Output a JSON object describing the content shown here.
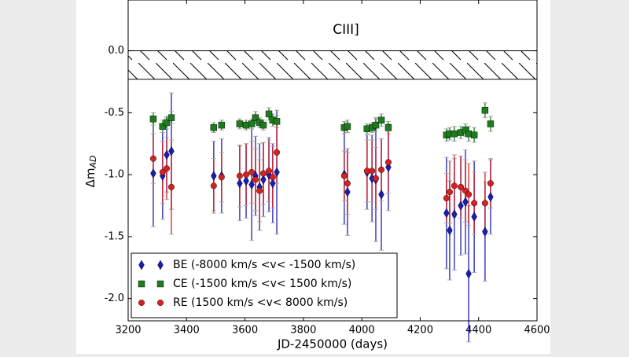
{
  "chart_data": {
    "type": "scatter",
    "annotation": "CIII]",
    "x_label": "JD-2450000 (days)",
    "y_label": "Δm",
    "y_label_subscript": "AD",
    "xlim": [
      3200,
      4600
    ],
    "xticks": [
      3200,
      3400,
      3600,
      3800,
      4000,
      4200,
      4400,
      4600
    ],
    "ylim": [
      -2.18,
      0.41
    ],
    "yticks": [
      {
        "value": 0,
        "label": "0.0"
      },
      -0.5,
      {
        "value": -1,
        "label": "-1.0"
      },
      -1.5,
      {
        "value": -2,
        "label": "-2.0"
      }
    ],
    "band": [
      -0.23,
      0
    ],
    "x": [
      3286,
      3318,
      3332,
      3348,
      3493,
      3520,
      3582,
      3604,
      3623,
      3636,
      3650,
      3663,
      3682,
      3695,
      3709,
      3940,
      3951,
      4018,
      4035,
      4048,
      4067,
      4091,
      4290,
      4301,
      4317,
      4339,
      4355,
      4366,
      4385,
      4422,
      4441
    ],
    "series": [
      {
        "name": "BE (-8000 km/s <v< -1500 km/s)",
        "color": "#1c1cb0",
        "marker": "diamond",
        "values": [
          -0.99,
          -1.01,
          -0.84,
          -0.81,
          -1.01,
          -1.01,
          -1.07,
          -1.05,
          -1.08,
          -1.01,
          -1.1,
          -1.04,
          -1.0,
          -1.07,
          -0.98,
          -1.0,
          -1.14,
          -0.98,
          -1.03,
          -1.04,
          -1.16,
          -0.94,
          -1.31,
          -1.45,
          -1.32,
          -1.25,
          -1.22,
          -1.8,
          -1.34,
          -1.46,
          -1.18
        ],
        "errors": [
          0.43,
          0.35,
          0.3,
          0.47,
          0.28,
          0.3,
          0.3,
          0.3,
          0.45,
          0.32,
          0.35,
          0.3,
          0.3,
          0.32,
          0.5,
          0.4,
          0.35,
          0.3,
          0.35,
          0.5,
          0.45,
          0.35,
          0.45,
          0.4,
          0.45,
          0.4,
          0.42,
          0.55,
          0.45,
          0.4,
          0.3
        ]
      },
      {
        "name": "CE (-1500 km/s <v< 1500 km/s)",
        "color": "#1e7b1e",
        "marker": "square",
        "values": [
          -0.55,
          -0.61,
          -0.58,
          -0.54,
          -0.62,
          -0.6,
          -0.59,
          -0.6,
          -0.59,
          -0.54,
          -0.58,
          -0.6,
          -0.51,
          -0.56,
          -0.57,
          -0.62,
          -0.61,
          -0.63,
          -0.62,
          -0.6,
          -0.56,
          -0.62,
          -0.68,
          -0.67,
          -0.67,
          -0.66,
          -0.64,
          -0.67,
          -0.68,
          -0.48,
          -0.59
        ],
        "errors": [
          0.05,
          0.05,
          0.05,
          0.05,
          0.04,
          0.04,
          0.04,
          0.04,
          0.04,
          0.05,
          0.04,
          0.04,
          0.05,
          0.05,
          0.05,
          0.05,
          0.05,
          0.04,
          0.04,
          0.05,
          0.05,
          0.05,
          0.05,
          0.05,
          0.06,
          0.05,
          0.05,
          0.06,
          0.06,
          0.06,
          0.06
        ]
      },
      {
        "name": "RE (1500 km/s <v< 8000 km/s)",
        "color": "#d42222",
        "marker": "circle",
        "values": [
          -0.87,
          -0.98,
          -0.95,
          -1.1,
          -1.09,
          -1.02,
          -1.01,
          -1.0,
          -0.98,
          -1.04,
          -1.13,
          -0.99,
          -0.97,
          -1.02,
          -0.82,
          -1.01,
          -1.07,
          -0.97,
          -0.97,
          -1.03,
          -0.96,
          -0.9,
          -1.19,
          -1.14,
          -1.09,
          -1.1,
          -1.13,
          -1.16,
          -1.23,
          -1.23,
          -1.07
        ],
        "errors": [
          0.2,
          0.25,
          0.25,
          0.38,
          0.22,
          0.2,
          0.25,
          0.25,
          0.25,
          0.25,
          0.25,
          0.25,
          0.25,
          0.25,
          0.25,
          0.2,
          0.25,
          0.25,
          0.25,
          0.25,
          0.25,
          0.25,
          0.2,
          0.25,
          0.25,
          0.25,
          0.25,
          0.25,
          0.25,
          0.25,
          0.2
        ]
      }
    ]
  }
}
